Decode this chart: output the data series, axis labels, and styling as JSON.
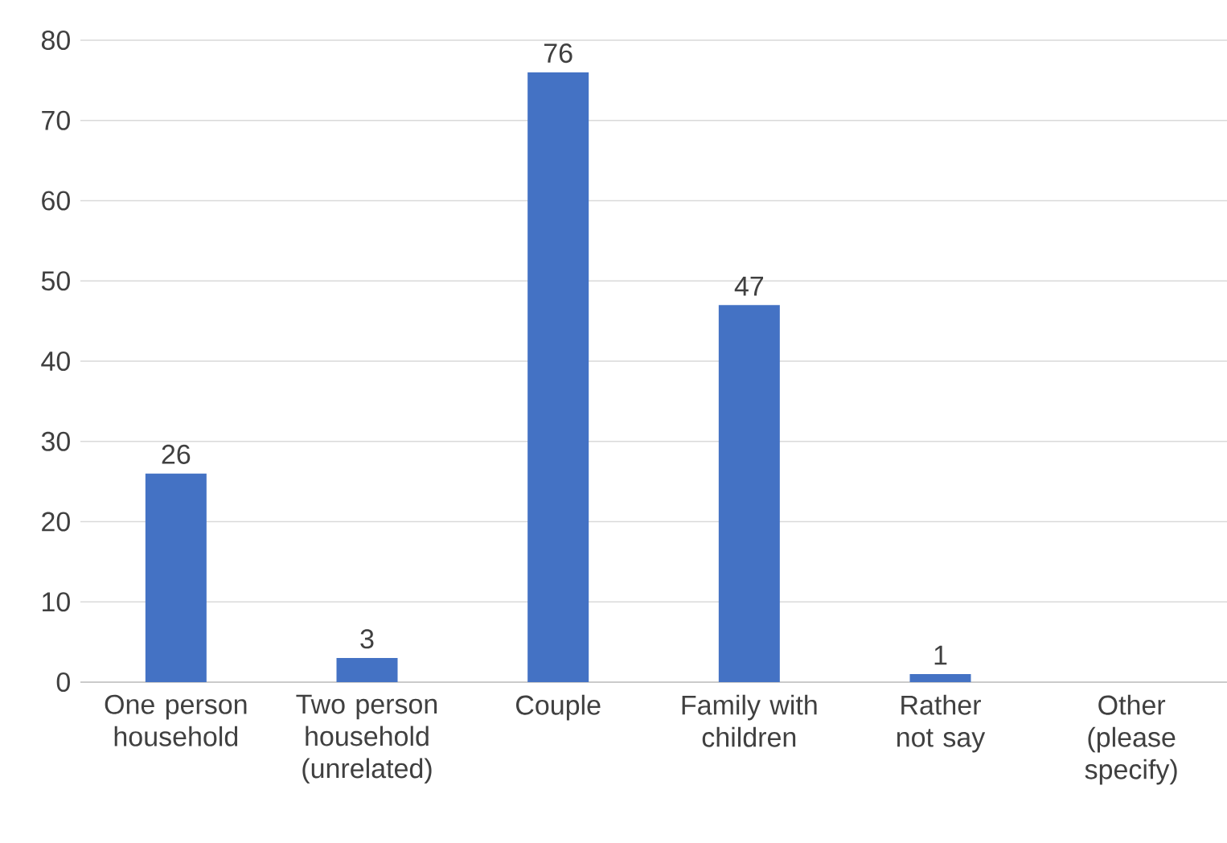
{
  "chart_data": {
    "type": "bar",
    "categories": [
      "One person household",
      "Two person household (unrelated)",
      "Couple",
      "Family with children",
      "Rather not say",
      "Other (please specify)"
    ],
    "values": [
      26,
      3,
      76,
      47,
      1,
      0
    ],
    "value_labels": [
      "26",
      "3",
      "76",
      "47",
      "1",
      null
    ],
    "color": "#4472c4",
    "ylim": [
      0,
      80
    ],
    "yticks": [
      0,
      10,
      20,
      30,
      40,
      50,
      60,
      70,
      80
    ],
    "grid": "y"
  }
}
